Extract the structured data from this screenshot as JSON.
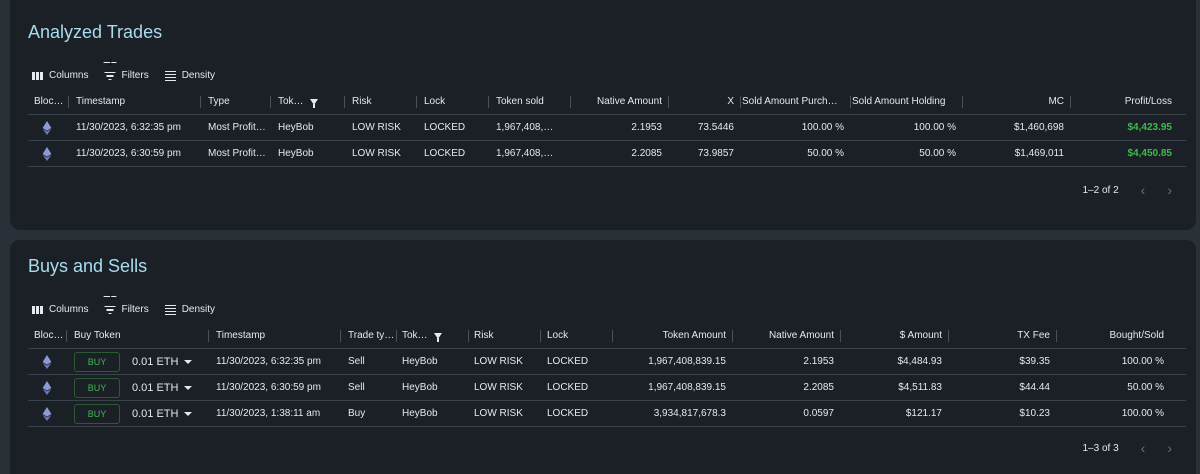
{
  "analyzed_trades": {
    "title": "Analyzed Trades",
    "toolbar": {
      "columns": "Columns",
      "filters": "Filters",
      "filter_count": "1",
      "density": "Density"
    },
    "headers": [
      "Bloc…",
      "Timestamp",
      "Type",
      "Tok…",
      "Risk",
      "Lock",
      "Token sold",
      "Native Amount",
      "X",
      "Sold Amount Purch…",
      "Sold Amount Holding",
      "MC",
      "Profit/Loss"
    ],
    "rows": [
      {
        "icon": "ethereum-icon",
        "timestamp": "11/30/2023, 6:32:35 pm",
        "type": "Most Profit…",
        "token": "HeyBob",
        "risk": "LOW RISK",
        "lock": "LOCKED",
        "token_sold": "1,967,408,…",
        "native_amount": "2.1953",
        "x": "73.5446",
        "sold_purch": "100.00 %",
        "sold_holding": "100.00 %",
        "mc": "$1,460,698",
        "profit": "$4,423.95"
      },
      {
        "icon": "ethereum-icon",
        "timestamp": "11/30/2023, 6:30:59 pm",
        "type": "Most Profit…",
        "token": "HeyBob",
        "risk": "LOW RISK",
        "lock": "LOCKED",
        "token_sold": "1,967,408,…",
        "native_amount": "2.2085",
        "x": "73.9857",
        "sold_purch": "50.00 %",
        "sold_holding": "50.00 %",
        "mc": "$1,469,011",
        "profit": "$4,450.85"
      }
    ],
    "pagination": "1–2 of 2"
  },
  "buys_and_sells": {
    "title": "Buys and Sells",
    "toolbar": {
      "columns": "Columns",
      "filters": "Filters",
      "filter_count": "1",
      "density": "Density"
    },
    "headers": [
      "Bloc…",
      "Buy Token",
      "Timestamp",
      "Trade ty…",
      "Tok…",
      "Risk",
      "Lock",
      "Token Amount",
      "Native Amount",
      "$ Amount",
      "TX Fee",
      "Bought/Sold"
    ],
    "rows": [
      {
        "icon": "ethereum-icon",
        "buy_label": "BUY",
        "buy_amount": "0.01 ETH",
        "timestamp": "11/30/2023, 6:32:35 pm",
        "trade_type": "Sell",
        "token": "HeyBob",
        "risk": "LOW RISK",
        "lock": "LOCKED",
        "token_amount": "1,967,408,839.15",
        "native_amount": "2.1953",
        "usd_amount": "$4,484.93",
        "tx_fee": "$39.35",
        "bought_sold": "100.00 %"
      },
      {
        "icon": "ethereum-icon",
        "buy_label": "BUY",
        "buy_amount": "0.01 ETH",
        "timestamp": "11/30/2023, 6:30:59 pm",
        "trade_type": "Sell",
        "token": "HeyBob",
        "risk": "LOW RISK",
        "lock": "LOCKED",
        "token_amount": "1,967,408,839.15",
        "native_amount": "2.2085",
        "usd_amount": "$4,511.83",
        "tx_fee": "$44.44",
        "bought_sold": "50.00 %"
      },
      {
        "icon": "ethereum-icon",
        "buy_label": "BUY",
        "buy_amount": "0.01 ETH",
        "timestamp": "11/30/2023, 1:38:11 am",
        "trade_type": "Buy",
        "token": "HeyBob",
        "risk": "LOW RISK",
        "lock": "LOCKED",
        "token_amount": "3,934,817,678.3",
        "native_amount": "0.0597",
        "usd_amount": "$121.17",
        "tx_fee": "$10.23",
        "bought_sold": "100.00 %"
      }
    ],
    "pagination": "1–3 of 3"
  },
  "colors": {
    "panel_bg": "#1b1f26",
    "page_bg": "#2a3038",
    "title": "#a8dcee",
    "profit": "#3fb950",
    "buy_button": "#3fb950"
  }
}
